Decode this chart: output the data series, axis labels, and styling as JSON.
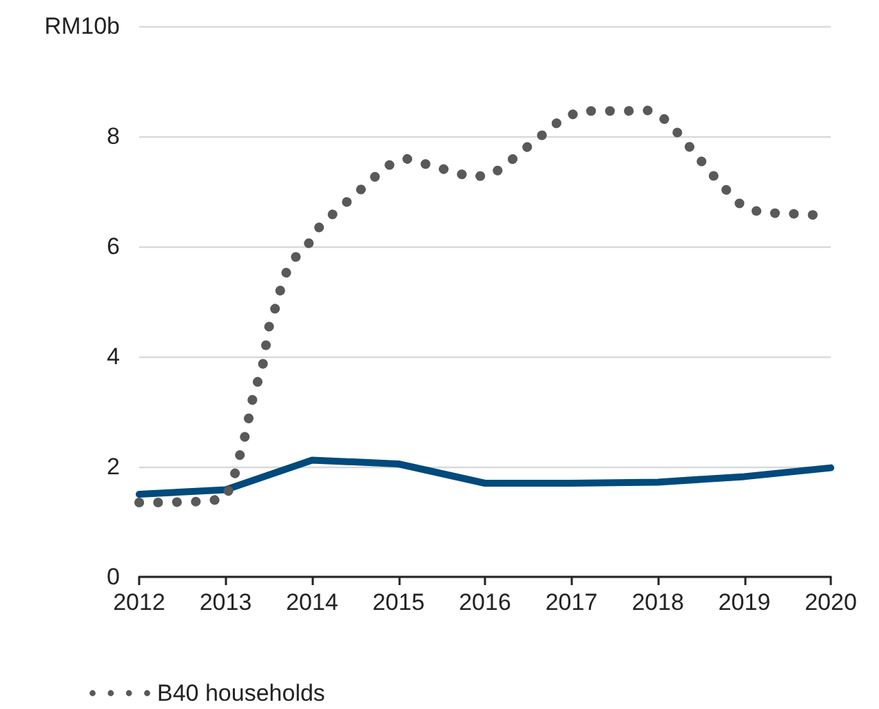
{
  "chart_data": {
    "type": "line",
    "xlim": [
      2012,
      2020
    ],
    "xticks": [
      2012,
      2013,
      2014,
      2015,
      2016,
      2017,
      2018,
      2019,
      2020
    ],
    "ylim": [
      0,
      10
    ],
    "yticks": [
      0,
      2,
      4,
      6,
      8,
      {
        "value": 10,
        "label": "RM10b"
      }
    ],
    "grid": "y",
    "legend": "bottom left",
    "series": [
      {
        "color": "#004a7c",
        "line_style": "solid",
        "x": [
          2012,
          2013,
          2014,
          2015,
          2016,
          2017,
          2018,
          2019,
          2020
        ],
        "values": [
          1.5,
          1.58,
          2.12,
          2.05,
          1.7,
          1.7,
          1.72,
          1.82,
          1.98
        ]
      },
      {
        "name": "B40 households",
        "color": "#595959",
        "line_style": "dotted",
        "x": [
          2012,
          2012.25,
          2012.5,
          2012.78,
          2013,
          2013.1,
          2013.23,
          2013.33,
          2013.42,
          2013.5,
          2013.58,
          2013.65,
          2013.74,
          2013.97,
          2014.1,
          2014.3,
          2014.5,
          2014.68,
          2014.88,
          2015.1,
          2015.35,
          2015.6,
          2015.84,
          2016.08,
          2016.3,
          2016.5,
          2016.7,
          2016.9,
          2017.12,
          2017.38,
          2017.64,
          2017.9,
          2018.1,
          2018.27,
          2018.44,
          2018.6,
          2018.77,
          2018.97,
          2019.2,
          2019.47,
          2019.73,
          2020
        ],
        "values": [
          1.35,
          1.35,
          1.36,
          1.37,
          1.43,
          1.83,
          2.59,
          3.37,
          3.75,
          4.53,
          4.91,
          5.3,
          5.69,
          6.07,
          6.39,
          6.67,
          6.94,
          7.2,
          7.47,
          7.59,
          7.48,
          7.37,
          7.26,
          7.3,
          7.56,
          7.82,
          8.07,
          8.33,
          8.46,
          8.46,
          8.46,
          8.47,
          8.29,
          7.99,
          7.67,
          7.36,
          7.06,
          6.74,
          6.61,
          6.6,
          6.58,
          6.55
        ]
      }
    ]
  }
}
